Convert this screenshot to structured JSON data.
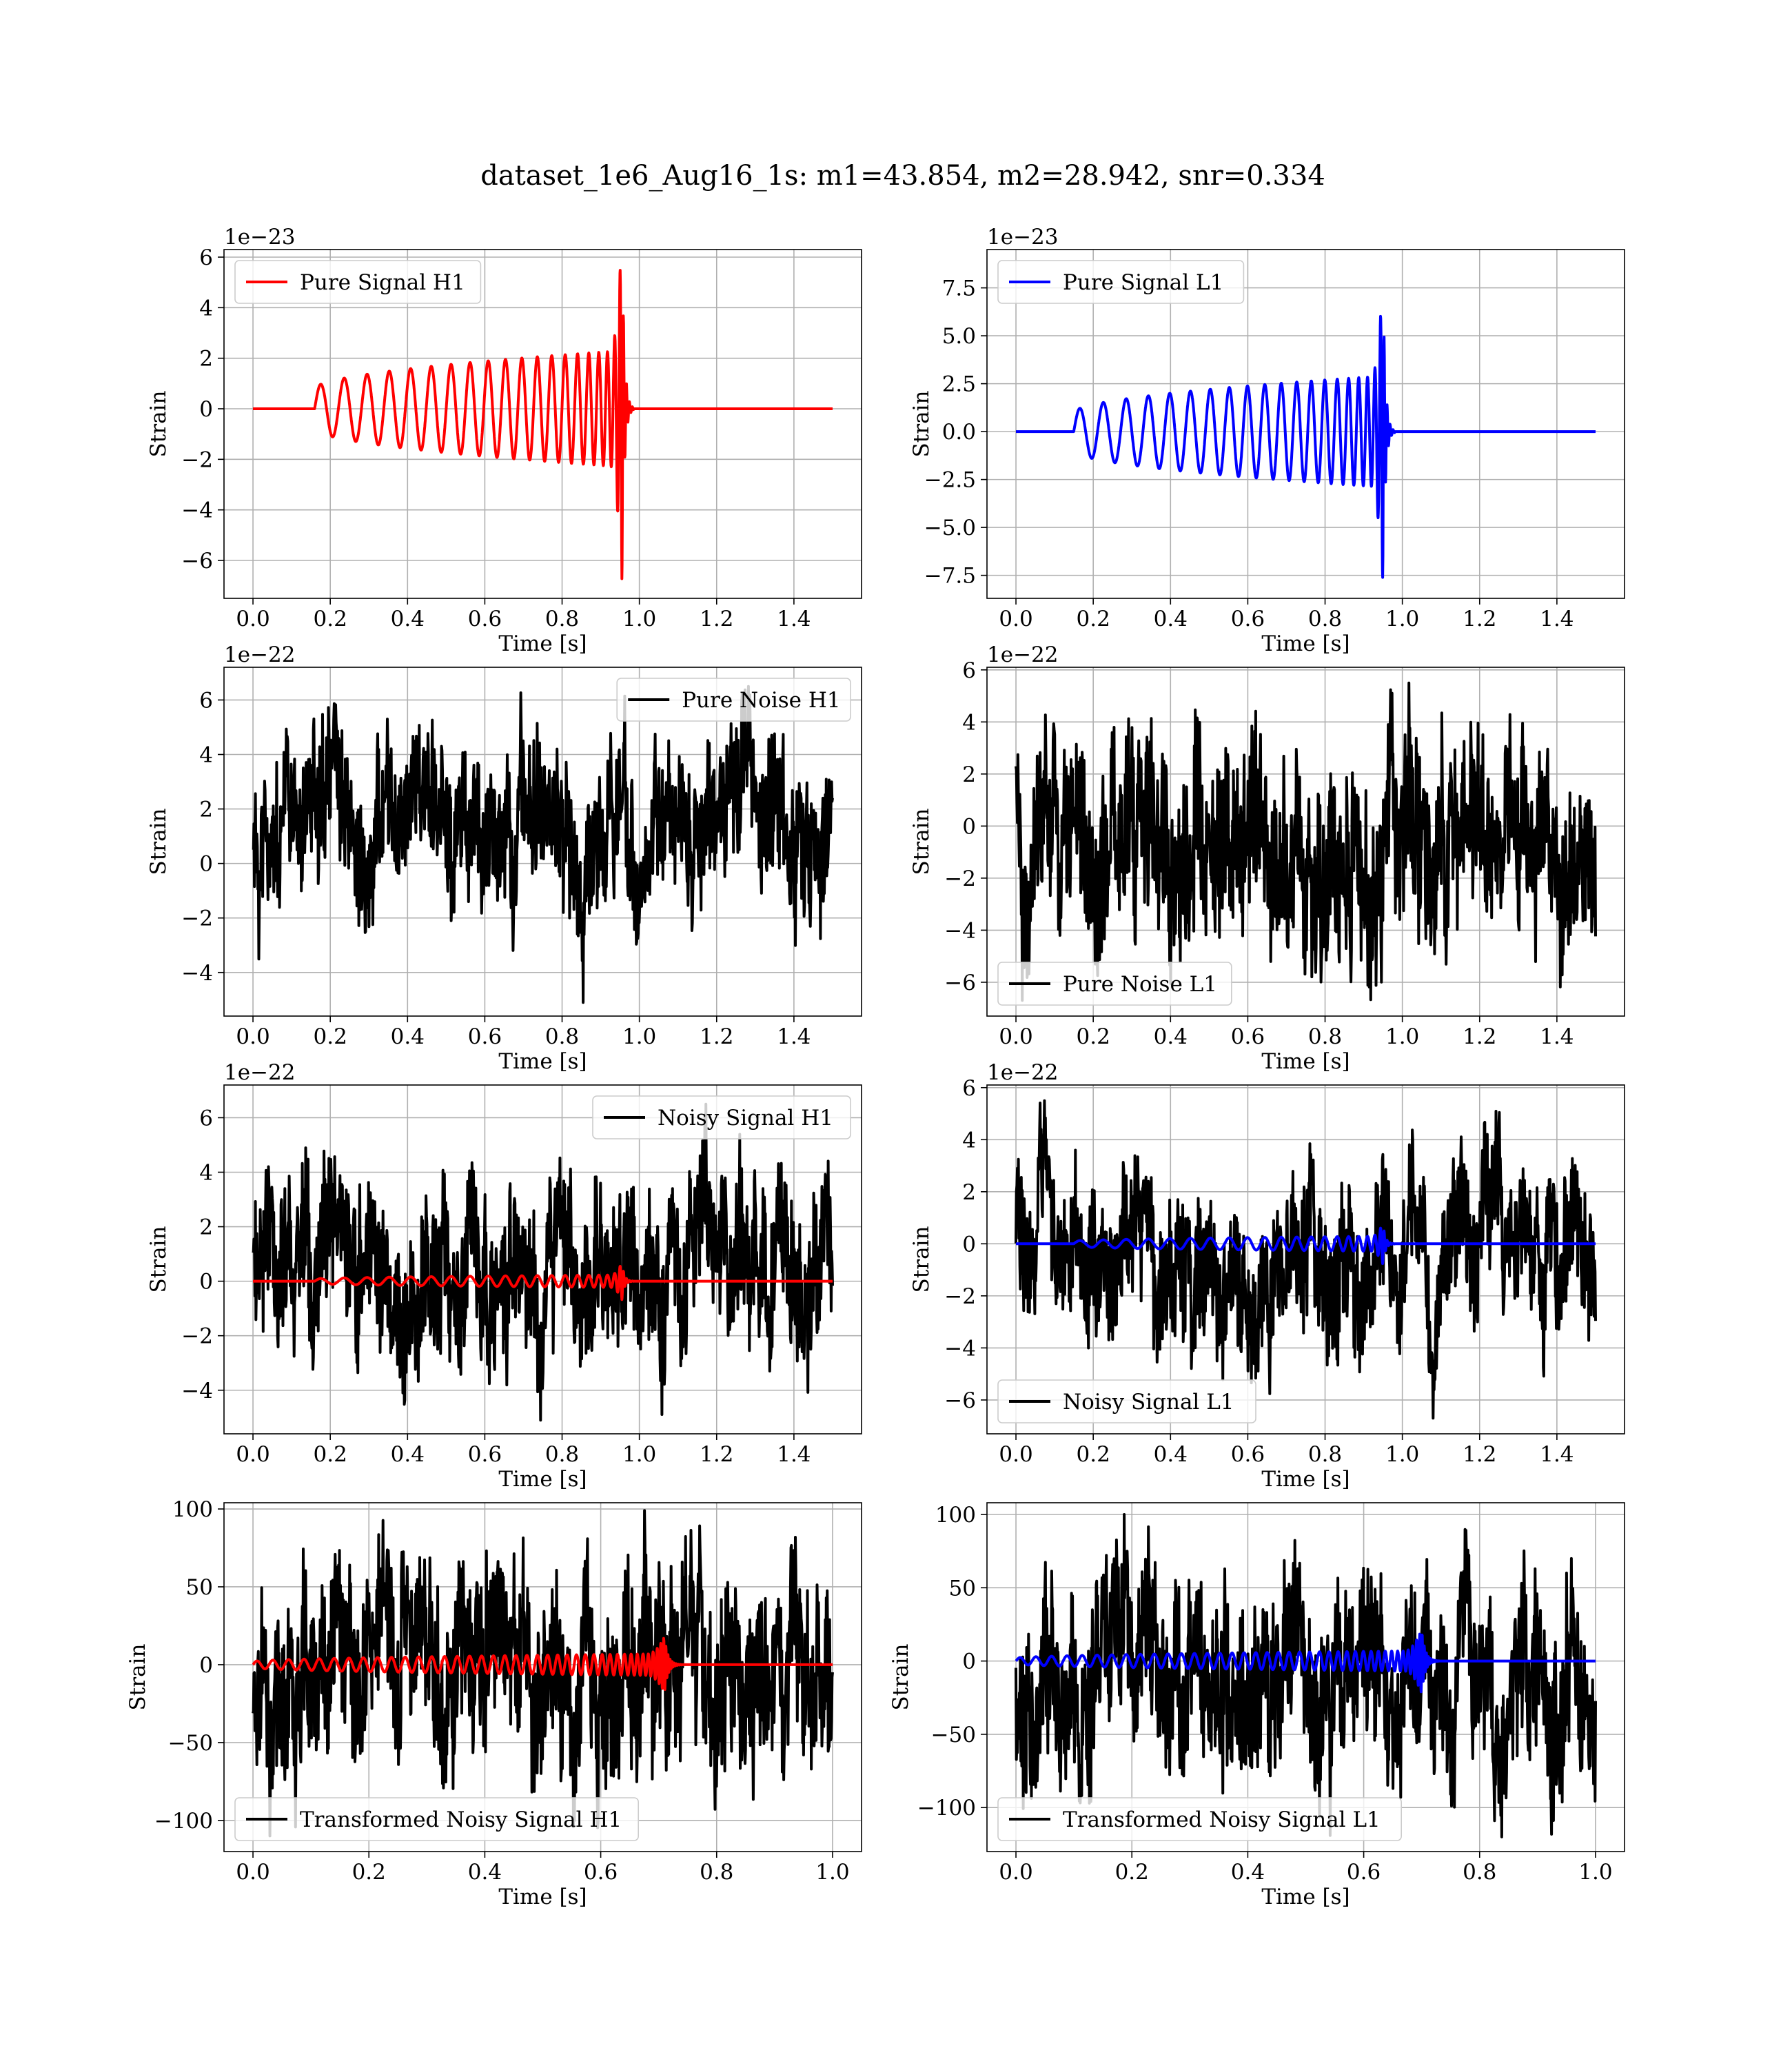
{
  "figure": {
    "title": "dataset_1e6_Aug16_1s: m1=43.854, m2=28.942, snr=0.334"
  },
  "colors": {
    "h1": "#ff0000",
    "l1": "#0000ff",
    "noise": "#000000",
    "grid": "#b0b0b0"
  },
  "chart_data": [
    {
      "type": "line",
      "id": "pure-signal-h1",
      "xlabel": "Time [s]",
      "ylabel": "Strain",
      "offset_text": "1e−23",
      "xlim": [
        -0.075,
        1.575
      ],
      "ylim": [
        -7.5,
        6.3
      ],
      "xticks": [
        0.0,
        0.2,
        0.4,
        0.6,
        0.8,
        1.0,
        1.2,
        1.4
      ],
      "xtick_labels": [
        "0.0",
        "0.2",
        "0.4",
        "0.6",
        "0.8",
        "1.0",
        "1.2",
        "1.4"
      ],
      "yticks": [
        6,
        4,
        2,
        0,
        -2,
        -4,
        -6
      ],
      "ytick_labels": [
        "6",
        "4",
        "2",
        "0",
        "−2",
        "−4",
        "−6"
      ],
      "legend": {
        "position": "upper-left",
        "entries": [
          {
            "label": "Pure Signal H1",
            "color": "#ff0000"
          }
        ]
      },
      "series": [
        {
          "name": "Pure Signal H1",
          "color": "#ff0000",
          "kind": "chirp",
          "x_range": [
            0.0,
            1.5
          ],
          "onset": 0.16,
          "merger": 0.955,
          "amp_start": 0.8,
          "amp_peak": 2.3,
          "peak_extreme": 6.9
        }
      ]
    },
    {
      "type": "line",
      "id": "pure-signal-l1",
      "xlabel": "Time [s]",
      "ylabel": "Strain",
      "offset_text": "1e−23",
      "xlim": [
        -0.075,
        1.575
      ],
      "ylim": [
        -8.7,
        9.5
      ],
      "xticks": [
        0.0,
        0.2,
        0.4,
        0.6,
        0.8,
        1.0,
        1.2,
        1.4
      ],
      "xtick_labels": [
        "0.0",
        "0.2",
        "0.4",
        "0.6",
        "0.8",
        "1.0",
        "1.2",
        "1.4"
      ],
      "yticks": [
        7.5,
        5.0,
        2.5,
        0.0,
        -2.5,
        -5.0,
        -7.5
      ],
      "ytick_labels": [
        "7.5",
        "5.0",
        "2.5",
        "0.0",
        "−2.5",
        "−5.0",
        "−7.5"
      ],
      "legend": {
        "position": "upper-left",
        "entries": [
          {
            "label": "Pure Signal L1",
            "color": "#0000ff"
          }
        ]
      },
      "series": [
        {
          "name": "Pure Signal L1",
          "color": "#0000ff",
          "kind": "chirp",
          "x_range": [
            0.0,
            1.5
          ],
          "onset": 0.15,
          "merger": 0.95,
          "amp_start": 1.0,
          "amp_peak": 2.9,
          "peak_extreme": 8.0
        }
      ]
    },
    {
      "type": "line",
      "id": "pure-noise-h1",
      "xlabel": "Time [s]",
      "ylabel": "Strain",
      "offset_text": "1e−22",
      "xlim": [
        -0.075,
        1.575
      ],
      "ylim": [
        -5.6,
        7.2
      ],
      "xticks": [
        0.0,
        0.2,
        0.4,
        0.6,
        0.8,
        1.0,
        1.2,
        1.4
      ],
      "xtick_labels": [
        "0.0",
        "0.2",
        "0.4",
        "0.6",
        "0.8",
        "1.0",
        "1.2",
        "1.4"
      ],
      "yticks": [
        6,
        4,
        2,
        0,
        -2,
        -4
      ],
      "ytick_labels": [
        "6",
        "4",
        "2",
        "0",
        "−2",
        "−4"
      ],
      "legend": {
        "position": "upper-right",
        "entries": [
          {
            "label": "Pure Noise H1",
            "color": "#000000"
          }
        ]
      },
      "series": [
        {
          "name": "Pure Noise H1",
          "color": "#000000",
          "kind": "noise",
          "x_range": [
            0.0,
            1.5
          ],
          "min": -5.1,
          "max": 6.5
        }
      ]
    },
    {
      "type": "line",
      "id": "pure-noise-l1",
      "xlabel": "Time [s]",
      "ylabel": "Strain",
      "offset_text": "1e−22",
      "xlim": [
        -0.075,
        1.575
      ],
      "ylim": [
        -7.3,
        6.1
      ],
      "xticks": [
        0.0,
        0.2,
        0.4,
        0.6,
        0.8,
        1.0,
        1.2,
        1.4
      ],
      "xtick_labels": [
        "0.0",
        "0.2",
        "0.4",
        "0.6",
        "0.8",
        "1.0",
        "1.2",
        "1.4"
      ],
      "yticks": [
        6,
        4,
        2,
        0,
        -2,
        -4,
        -6
      ],
      "ytick_labels": [
        "6",
        "4",
        "2",
        "0",
        "−2",
        "−4",
        "−6"
      ],
      "legend": {
        "position": "lower-left",
        "entries": [
          {
            "label": "Pure Noise L1",
            "color": "#000000"
          }
        ]
      },
      "series": [
        {
          "name": "Pure Noise L1",
          "color": "#000000",
          "kind": "noise",
          "x_range": [
            0.0,
            1.5
          ],
          "min": -6.7,
          "max": 5.5
        }
      ]
    },
    {
      "type": "line",
      "id": "noisy-signal-h1",
      "xlabel": "Time [s]",
      "ylabel": "Strain",
      "offset_text": "1e−22",
      "xlim": [
        -0.075,
        1.575
      ],
      "ylim": [
        -5.6,
        7.2
      ],
      "xticks": [
        0.0,
        0.2,
        0.4,
        0.6,
        0.8,
        1.0,
        1.2,
        1.4
      ],
      "xtick_labels": [
        "0.0",
        "0.2",
        "0.4",
        "0.6",
        "0.8",
        "1.0",
        "1.2",
        "1.4"
      ],
      "yticks": [
        6,
        4,
        2,
        0,
        -2,
        -4
      ],
      "ytick_labels": [
        "6",
        "4",
        "2",
        "0",
        "−2",
        "−4"
      ],
      "legend": {
        "position": "upper-right",
        "entries": [
          {
            "label": "Noisy Signal H1",
            "color": "#000000"
          }
        ]
      },
      "series": [
        {
          "color": "#000000",
          "kind": "noise",
          "x_range": [
            0.0,
            1.5
          ],
          "min": -5.1,
          "max": 6.5
        },
        {
          "color": "#ff0000",
          "kind": "chirp",
          "x_range": [
            0.0,
            1.5
          ],
          "onset": 0.16,
          "merger": 0.955,
          "amp_start": 0.08,
          "amp_peak": 0.23,
          "peak_extreme": 0.69
        }
      ]
    },
    {
      "type": "line",
      "id": "noisy-signal-l1",
      "xlabel": "Time [s]",
      "ylabel": "Strain",
      "offset_text": "1e−22",
      "xlim": [
        -0.075,
        1.575
      ],
      "ylim": [
        -7.3,
        6.1
      ],
      "xticks": [
        0.0,
        0.2,
        0.4,
        0.6,
        0.8,
        1.0,
        1.2,
        1.4
      ],
      "xtick_labels": [
        "0.0",
        "0.2",
        "0.4",
        "0.6",
        "0.8",
        "1.0",
        "1.2",
        "1.4"
      ],
      "yticks": [
        6,
        4,
        2,
        0,
        -2,
        -4,
        -6
      ],
      "ytick_labels": [
        "6",
        "4",
        "2",
        "0",
        "−2",
        "−4",
        "−6"
      ],
      "legend": {
        "position": "lower-left",
        "entries": [
          {
            "label": "Noisy Signal L1",
            "color": "#000000"
          }
        ]
      },
      "series": [
        {
          "color": "#000000",
          "kind": "noise",
          "x_range": [
            0.0,
            1.5
          ],
          "min": -6.7,
          "max": 5.5
        },
        {
          "color": "#0000ff",
          "kind": "chirp",
          "x_range": [
            0.0,
            1.5
          ],
          "onset": 0.15,
          "merger": 0.95,
          "amp_start": 0.1,
          "amp_peak": 0.29,
          "peak_extreme": 0.8
        }
      ]
    },
    {
      "type": "line",
      "id": "transformed-h1",
      "xlabel": "Time [s]",
      "ylabel": "Strain",
      "offset_text": "",
      "xlim": [
        -0.05,
        1.05
      ],
      "ylim": [
        -120,
        104
      ],
      "xticks": [
        0.0,
        0.2,
        0.4,
        0.6,
        0.8,
        1.0
      ],
      "xtick_labels": [
        "0.0",
        "0.2",
        "0.4",
        "0.6",
        "0.8",
        "1.0"
      ],
      "yticks": [
        100,
        50,
        0,
        -50,
        -100
      ],
      "ytick_labels": [
        "100",
        "50",
        "0",
        "−50",
        "−100"
      ],
      "legend": {
        "position": "lower-left",
        "entries": [
          {
            "label": "Transformed Noisy Signal H1",
            "color": "#000000"
          }
        ]
      },
      "series": [
        {
          "color": "#000000",
          "kind": "noise",
          "x_range": [
            0.0,
            1.0
          ],
          "min": -110,
          "max": 99
        },
        {
          "color": "#ff0000",
          "kind": "chirp",
          "x_range": [
            0.0,
            1.0
          ],
          "onset": 0.0,
          "merger": 0.71,
          "amp_start": 2,
          "amp_peak": 7,
          "peak_extreme": 18
        }
      ]
    },
    {
      "type": "line",
      "id": "transformed-l1",
      "xlabel": "Time [s]",
      "ylabel": "Strain",
      "offset_text": "",
      "xlim": [
        -0.05,
        1.05
      ],
      "ylim": [
        -130,
        108
      ],
      "xticks": [
        0.0,
        0.2,
        0.4,
        0.6,
        0.8,
        1.0
      ],
      "xtick_labels": [
        "0.0",
        "0.2",
        "0.4",
        "0.6",
        "0.8",
        "1.0"
      ],
      "yticks": [
        100,
        50,
        0,
        -50,
        -100
      ],
      "ytick_labels": [
        "100",
        "50",
        "0",
        "−50",
        "−100"
      ],
      "legend": {
        "position": "lower-left",
        "entries": [
          {
            "label": "Transformed Noisy Signal L1",
            "color": "#000000"
          }
        ]
      },
      "series": [
        {
          "color": "#000000",
          "kind": "noise",
          "x_range": [
            0.0,
            1.0
          ],
          "min": -120,
          "max": 100
        },
        {
          "color": "#0000ff",
          "kind": "chirp",
          "x_range": [
            0.0,
            1.0
          ],
          "onset": 0.0,
          "merger": 0.7,
          "amp_start": 2,
          "amp_peak": 7,
          "peak_extreme": 22
        }
      ]
    }
  ]
}
